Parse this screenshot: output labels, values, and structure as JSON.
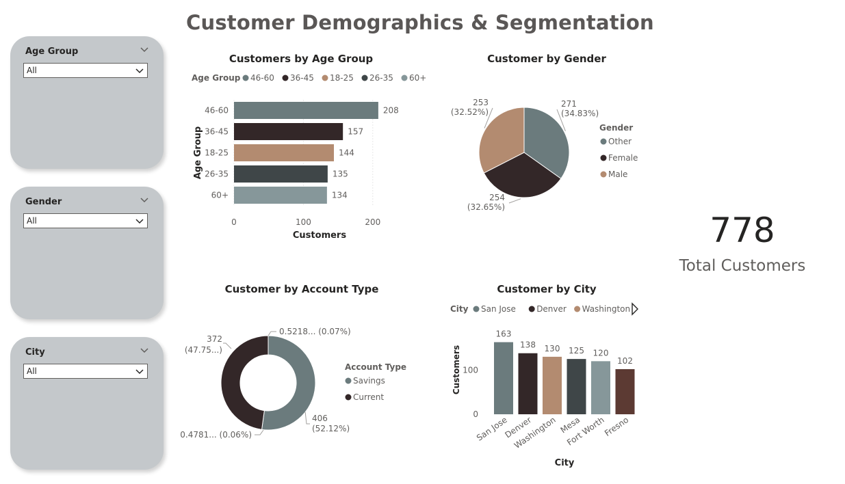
{
  "page": {
    "title": "Customer Demographics & Segmentation"
  },
  "slicers": [
    {
      "label": "Age Group",
      "value": "All"
    },
    {
      "label": "Gender",
      "value": "All"
    },
    {
      "label": "City",
      "value": "All"
    }
  ],
  "kpi": {
    "value": "778",
    "label": "Total Customers"
  },
  "colors": {
    "slate": "#6b7b7d",
    "dark": "#332728",
    "tan": "#b38b70",
    "charcoal": "#3f4648",
    "light": "#86979a",
    "brown": "#5c3a33"
  },
  "chart_data": [
    {
      "id": "age",
      "type": "bar",
      "orientation": "horizontal",
      "title": "Customers by Age Group",
      "legend_title": "Age Group",
      "legend_position": "top",
      "categories": [
        "46-60",
        "36-45",
        "18-25",
        "26-35",
        "60+"
      ],
      "values": [
        208,
        157,
        144,
        135,
        134
      ],
      "data_labels": [
        "208",
        "157",
        "144",
        "135",
        "134"
      ],
      "bar_colors": [
        "#6b7b7d",
        "#332728",
        "#b38b70",
        "#3f4648",
        "#86979a"
      ],
      "xlabel": "Customers",
      "ylabel": "Age Group",
      "xlim": [
        0,
        215
      ],
      "x_ticks": [
        "0",
        "100",
        "200"
      ],
      "grid": true
    },
    {
      "id": "gender",
      "type": "pie",
      "title": "Customer by Gender",
      "legend_title": "Gender",
      "legend_position": "right",
      "labels": [
        "Other",
        "Female",
        "Male"
      ],
      "values": [
        271,
        254,
        253
      ],
      "data_labels": [
        {
          "value": "271",
          "pct": "(34.83%)"
        },
        {
          "value": "254",
          "pct": "(32.65%)"
        },
        {
          "value": "253",
          "pct": "(32.52%)"
        }
      ],
      "slice_colors": [
        "#6b7b7d",
        "#332728",
        "#b38b70"
      ]
    },
    {
      "id": "account",
      "type": "pie",
      "donut": true,
      "title": "Customer by Account Type",
      "legend_title": "Account Type",
      "legend_position": "right",
      "labels": [
        "Savings",
        "Current"
      ],
      "values": [
        406,
        372
      ],
      "data_labels": {
        "savings": {
          "value": "406",
          "pct": "(52.12%)"
        },
        "current": {
          "value": "372",
          "pct": "(47.75...)"
        },
        "small_a": "0.5218... (0.07%)",
        "small_b": "0.4781... (0.06%)"
      },
      "slice_colors": [
        "#6b7b7d",
        "#332728"
      ]
    },
    {
      "id": "city",
      "type": "bar",
      "orientation": "vertical",
      "title": "Customer by City",
      "legend_title": "City",
      "legend_entries": [
        "San Jose",
        "Denver",
        "Washington"
      ],
      "legend_position": "top",
      "categories": [
        "San Jose",
        "Denver",
        "Washington",
        "Mesa",
        "Fort Worth",
        "Fresno"
      ],
      "values": [
        163,
        138,
        130,
        125,
        120,
        102
      ],
      "data_labels": [
        "163",
        "138",
        "130",
        "125",
        "120",
        "102"
      ],
      "bar_colors": [
        "#6b7b7d",
        "#332728",
        "#b38b70",
        "#3f4648",
        "#86979a",
        "#5c3a33"
      ],
      "xlabel": "City",
      "ylabel": "Customers",
      "ylim": [
        0,
        170
      ],
      "y_ticks": [
        "0",
        "100"
      ]
    }
  ]
}
